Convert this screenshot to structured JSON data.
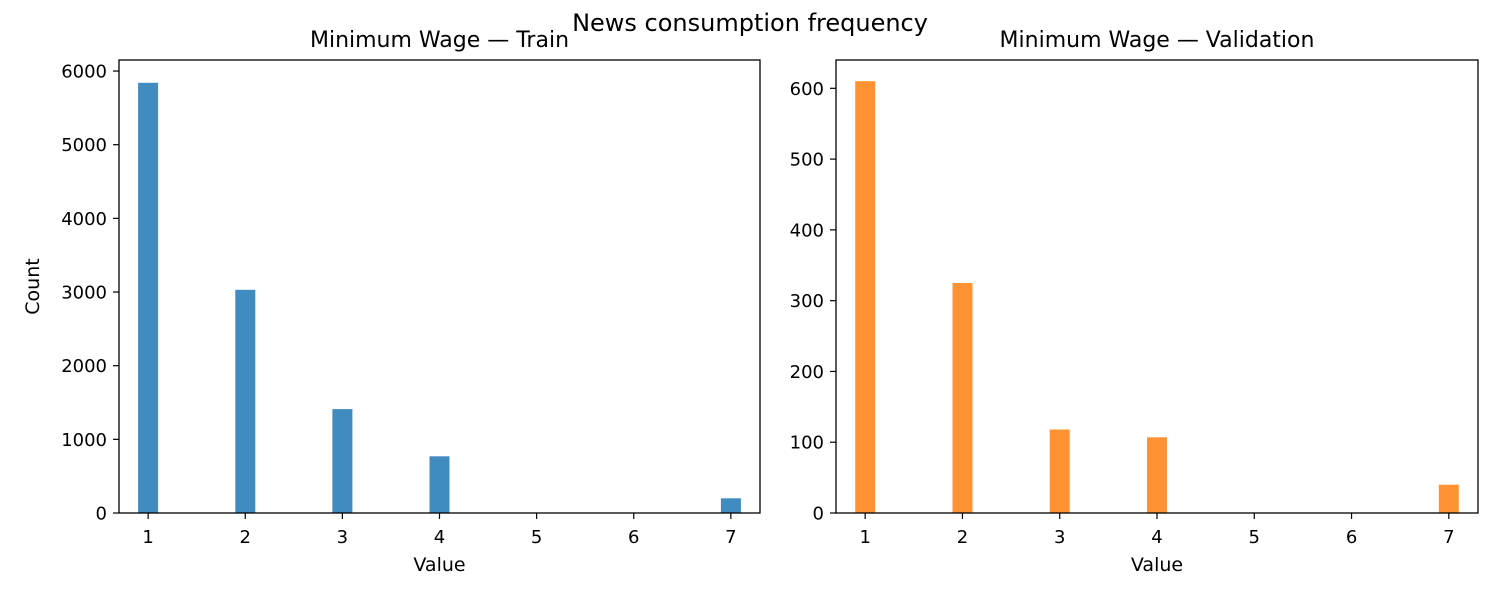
{
  "figure": {
    "suptitle": "News consumption frequency"
  },
  "chart_data": [
    {
      "type": "bar",
      "title": "Minimum Wage — Train",
      "xlabel": "Value",
      "ylabel": "Count",
      "x": [
        1,
        2,
        3,
        4,
        5,
        6,
        7
      ],
      "values": [
        5840,
        3030,
        1410,
        770,
        0,
        0,
        200
      ],
      "xlim": [
        0.7,
        7.3
      ],
      "ylim": [
        0,
        6150
      ],
      "xticks": [
        "1",
        "2",
        "3",
        "4",
        "5",
        "6",
        "7"
      ],
      "yticks": [
        "0",
        "1000",
        "2000",
        "3000",
        "4000",
        "5000",
        "6000"
      ],
      "color": "#1f77b4",
      "grid": false
    },
    {
      "type": "bar",
      "title": "Minimum Wage — Validation",
      "xlabel": "Value",
      "ylabel": "",
      "x": [
        1,
        2,
        3,
        4,
        5,
        6,
        7
      ],
      "values": [
        610,
        325,
        118,
        107,
        0,
        0,
        40
      ],
      "xlim": [
        0.7,
        7.3
      ],
      "ylim": [
        0,
        640
      ],
      "xticks": [
        "1",
        "2",
        "3",
        "4",
        "5",
        "6",
        "7"
      ],
      "yticks": [
        "0",
        "100",
        "200",
        "300",
        "400",
        "500",
        "600"
      ],
      "color": "#ff7f0e",
      "grid": false
    }
  ]
}
